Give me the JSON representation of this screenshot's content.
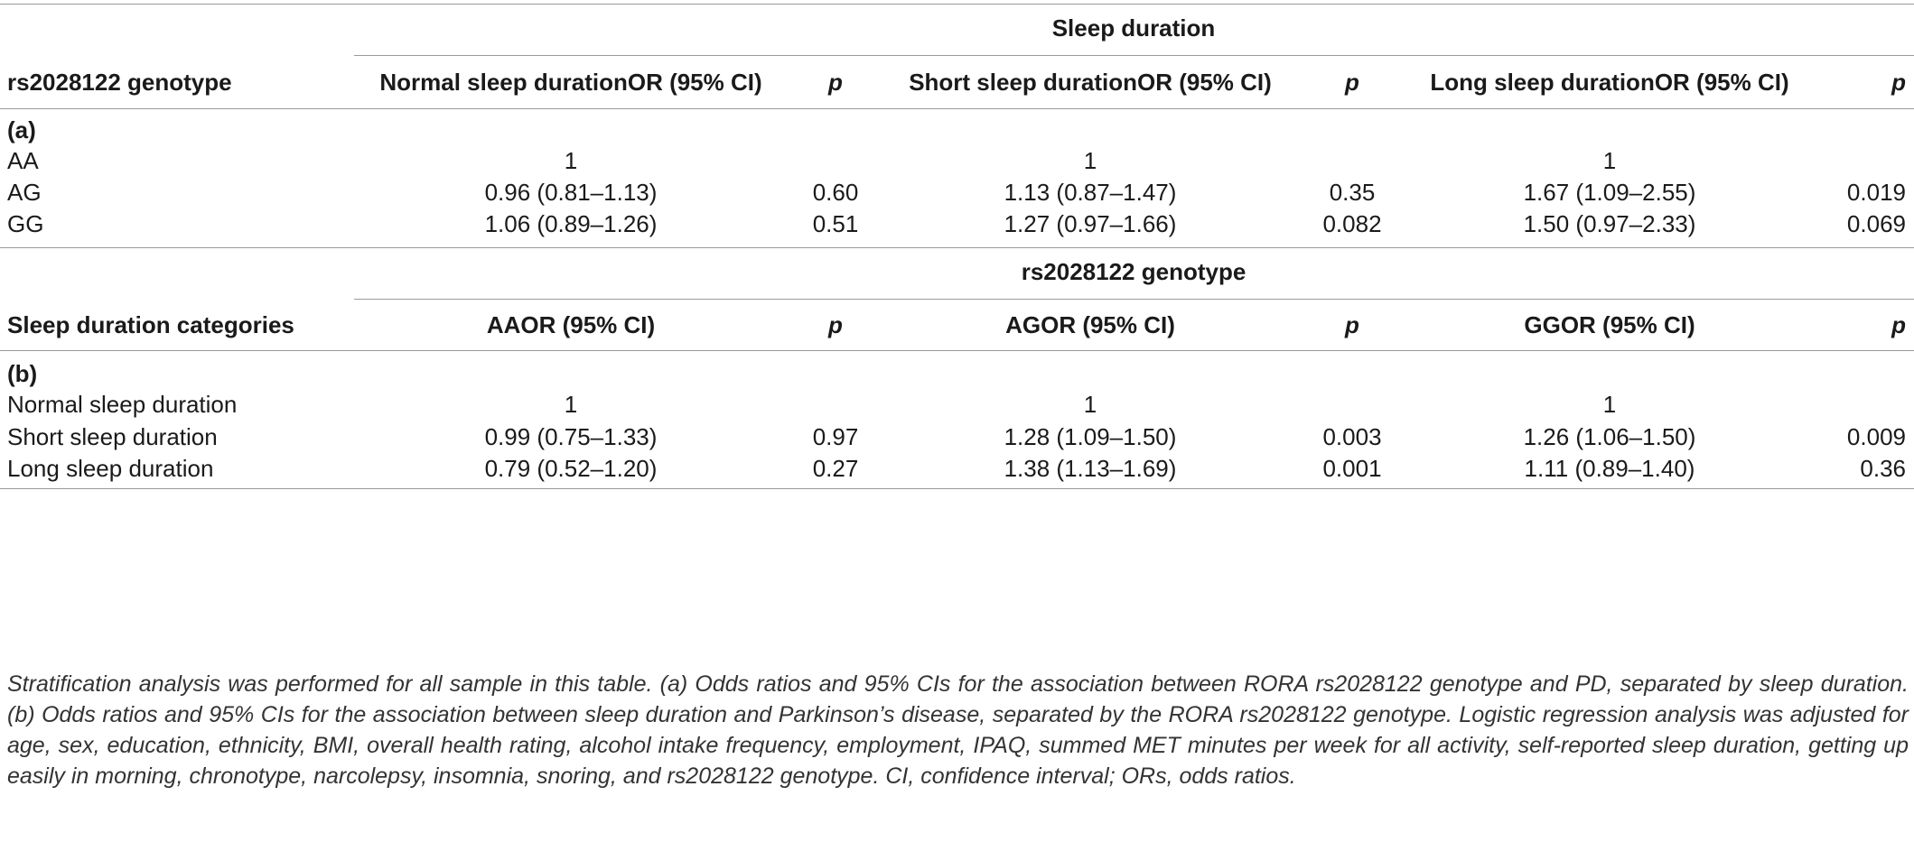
{
  "section_a": {
    "group_header": "Sleep duration",
    "row_header": "rs2028122 genotype",
    "columns": [
      "Normal sleep durationOR (95% CI)",
      "p",
      "Short sleep durationOR (95% CI)",
      "p",
      "Long sleep durationOR (95% CI)",
      "p"
    ],
    "label": "(a)",
    "rows": [
      {
        "name": "AA",
        "cells": [
          "1",
          "",
          "1",
          "",
          "1",
          ""
        ]
      },
      {
        "name": "AG",
        "cells": [
          "0.96 (0.81–1.13)",
          "0.60",
          "1.13 (0.87–1.47)",
          "0.35",
          "1.67 (1.09–2.55)",
          "0.019"
        ]
      },
      {
        "name": "GG",
        "cells": [
          "1.06 (0.89–1.26)",
          "0.51",
          "1.27 (0.97–1.66)",
          "0.082",
          "1.50 (0.97–2.33)",
          "0.069"
        ]
      }
    ]
  },
  "section_b": {
    "group_header": "rs2028122 genotype",
    "row_header": "Sleep duration categories",
    "columns": [
      "AAOR (95% CI)",
      "p",
      "AGOR (95% CI)",
      "p",
      "GGOR (95% CI)",
      "p"
    ],
    "label": "(b)",
    "rows": [
      {
        "name": "Normal sleep duration",
        "cells": [
          "1",
          "",
          "1",
          "",
          "1",
          ""
        ]
      },
      {
        "name": "Short sleep duration",
        "cells": [
          "0.99 (0.75–1.33)",
          "0.97",
          "1.28 (1.09–1.50)",
          "0.003",
          "1.26 (1.06–1.50)",
          "0.009"
        ]
      },
      {
        "name": "Long sleep duration",
        "cells": [
          "0.79 (0.52–1.20)",
          "0.27",
          "1.38 (1.13–1.69)",
          "0.001",
          "1.11 (0.89–1.40)",
          "0.36"
        ]
      }
    ]
  },
  "footnote": "Stratification analysis was performed for all sample in this table. (a) Odds ratios and 95% CIs for the association between RORA rs2028122 genotype and PD, separated by sleep duration. (b) Odds ratios and 95% CIs for the association between sleep duration and Parkinson’s disease, separated by the RORA rs2028122 genotype. Logistic regression analysis was adjusted for age, sex, education, ethnicity, BMI, overall health rating, alcohol intake frequency, employment, IPAQ, summed MET minutes per week for all activity, self-reported sleep duration, getting up easily in morning, chronotype, narcolepsy, insomnia, snoring, and rs2028122 genotype. CI, confidence interval; ORs, odds ratios."
}
